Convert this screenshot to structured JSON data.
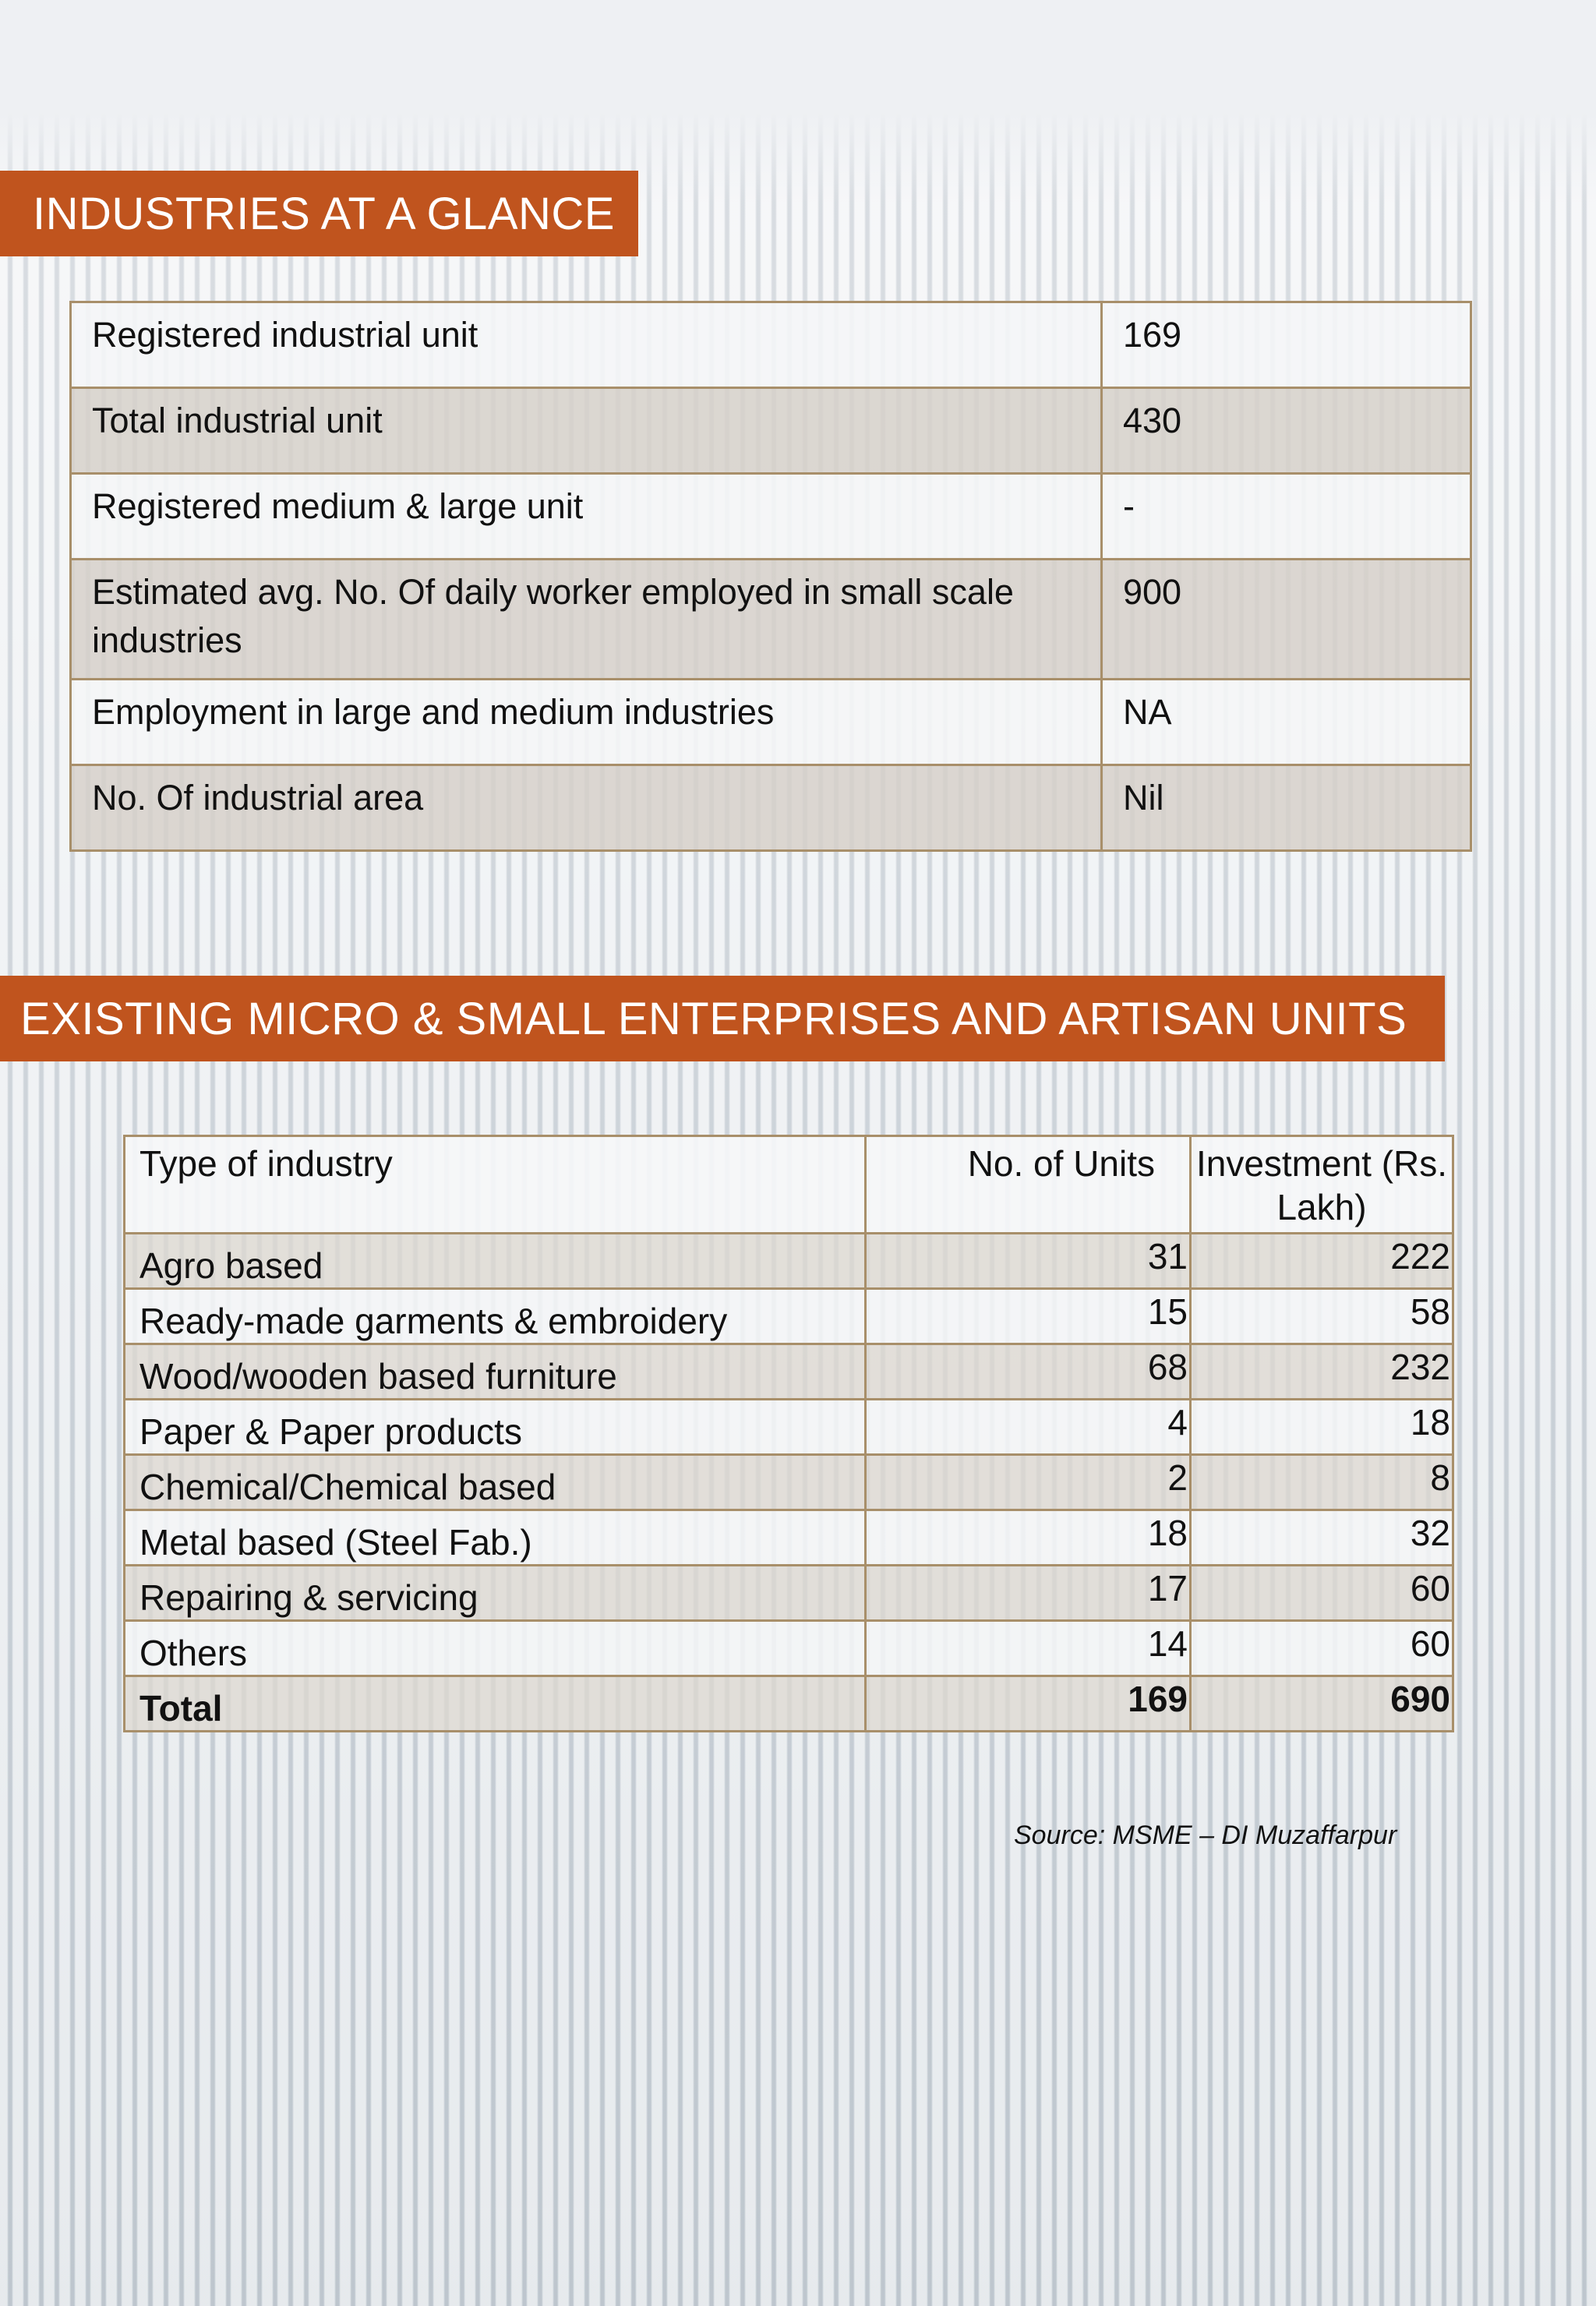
{
  "glance": {
    "heading": "INDUSTRIES AT A GLANCE",
    "rows": [
      {
        "label": "Registered industrial unit",
        "value": "169"
      },
      {
        "label": "Total industrial unit",
        "value": "430"
      },
      {
        "label": "Registered medium & large unit",
        "value": "-"
      },
      {
        "label": "Estimated avg. No. Of daily worker employed in small scale industries",
        "value": "900"
      },
      {
        "label": "Employment in large and medium industries",
        "value": "NA"
      },
      {
        "label": "No. Of industrial area",
        "value": "Nil"
      }
    ]
  },
  "msme": {
    "heading": "EXISTING MICRO & SMALL ENTERPRISES AND ARTISAN UNITS",
    "columns": [
      "Type of industry",
      "No. of Units",
      "Investment (Rs. Lakh)"
    ],
    "rows": [
      {
        "type": "Agro based",
        "units": "31",
        "investment": "222"
      },
      {
        "type": "Ready-made garments & embroidery",
        "units": "15",
        "investment": "58"
      },
      {
        "type": "Wood/wooden based furniture",
        "units": "68",
        "investment": "232"
      },
      {
        "type": "Paper & Paper products",
        "units": "4",
        "investment": "18"
      },
      {
        "type": "Chemical/Chemical based",
        "units": "2",
        "investment": "8"
      },
      {
        "type": "Metal based (Steel Fab.)",
        "units": "18",
        "investment": "32"
      },
      {
        "type": "Repairing & servicing",
        "units": "17",
        "investment": "60"
      },
      {
        "type": "Others",
        "units": "14",
        "investment": "60"
      }
    ],
    "total": {
      "type": "Total",
      "units": "169",
      "investment": "690"
    },
    "source": "Source: MSME – DI Muzaffarpur"
  }
}
